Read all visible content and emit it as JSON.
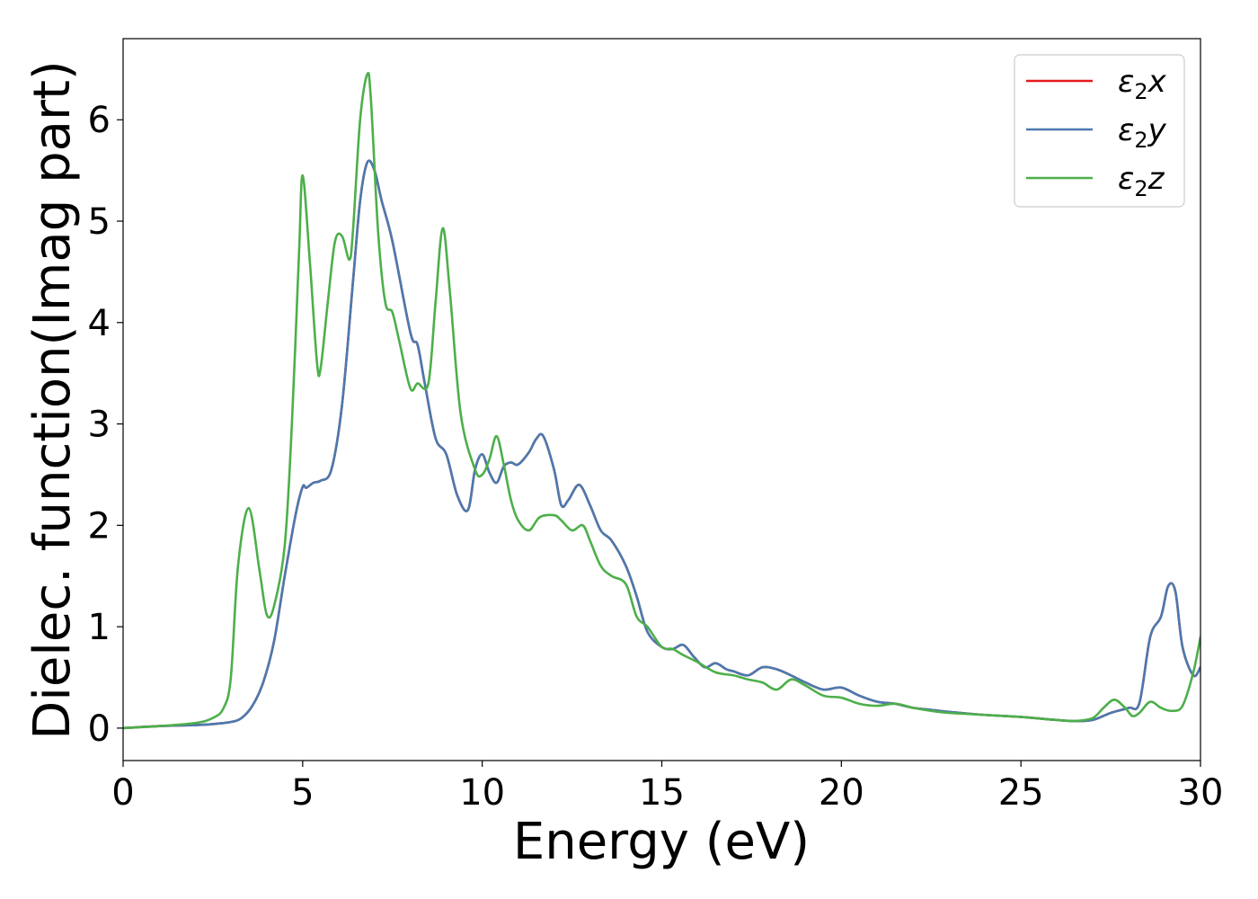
{
  "chart_data": {
    "type": "line",
    "xlabel": "Energy (eV)",
    "ylabel": "Dielec. function(Imag part)",
    "xlim": [
      0,
      30
    ],
    "ylim": [
      -0.32,
      6.8
    ],
    "xticks": [
      0,
      5,
      10,
      15,
      20,
      25,
      30
    ],
    "yticks": [
      0,
      1,
      2,
      3,
      4,
      5,
      6
    ],
    "grid": false,
    "legend_position": "top-right",
    "series": [
      {
        "name": "ε2x",
        "label_main": "ε",
        "label_sub": "2",
        "label_axis": "x",
        "color": "#e41a1c",
        "x": [
          0,
          1,
          2,
          2.5,
          3,
          3.3,
          3.6,
          3.9,
          4.2,
          4.5,
          4.8,
          5.0,
          5.1,
          5.3,
          5.5,
          5.8,
          6.1,
          6.4,
          6.6,
          6.8,
          7.0,
          7.2,
          7.5,
          8.0,
          8.2,
          8.4,
          8.7,
          9.0,
          9.3,
          9.6,
          9.8,
          10.0,
          10.2,
          10.4,
          10.6,
          10.8,
          11.0,
          11.3,
          11.5,
          11.7,
          12.0,
          12.2,
          12.4,
          12.7,
          13.0,
          13.3,
          13.6,
          14.0,
          14.3,
          14.6,
          15.0,
          15.3,
          15.6,
          15.9,
          16.2,
          16.5,
          16.8,
          17.0,
          17.4,
          17.8,
          18.2,
          18.6,
          19.0,
          19.5,
          20.0,
          20.5,
          21.0,
          21.5,
          22.0,
          22.5,
          23.0,
          24.0,
          25.0,
          26.0,
          26.5,
          27.0,
          27.5,
          28.0,
          28.3,
          28.6,
          28.9,
          29.1,
          29.3,
          29.5,
          29.8,
          30.0
        ],
        "y": [
          0.0,
          0.02,
          0.03,
          0.04,
          0.06,
          0.1,
          0.22,
          0.45,
          0.85,
          1.5,
          2.1,
          2.38,
          2.37,
          2.42,
          2.44,
          2.55,
          3.2,
          4.4,
          5.2,
          5.58,
          5.5,
          5.2,
          4.8,
          3.9,
          3.78,
          3.4,
          2.86,
          2.7,
          2.3,
          2.15,
          2.55,
          2.7,
          2.52,
          2.42,
          2.58,
          2.62,
          2.6,
          2.72,
          2.85,
          2.88,
          2.55,
          2.2,
          2.25,
          2.4,
          2.2,
          1.95,
          1.85,
          1.6,
          1.3,
          0.95,
          0.8,
          0.78,
          0.82,
          0.7,
          0.6,
          0.64,
          0.58,
          0.56,
          0.52,
          0.6,
          0.58,
          0.52,
          0.45,
          0.38,
          0.4,
          0.32,
          0.26,
          0.24,
          0.2,
          0.18,
          0.16,
          0.13,
          0.11,
          0.08,
          0.07,
          0.08,
          0.15,
          0.2,
          0.25,
          0.9,
          1.1,
          1.4,
          1.35,
          0.8,
          0.52,
          0.6
        ]
      },
      {
        "name": "ε2y",
        "label_main": "ε",
        "label_sub": "2",
        "label_axis": "y",
        "color": "#4a7aaf",
        "x": [
          0,
          1,
          2,
          2.5,
          3,
          3.3,
          3.6,
          3.9,
          4.2,
          4.5,
          4.8,
          5.0,
          5.1,
          5.3,
          5.5,
          5.8,
          6.1,
          6.4,
          6.6,
          6.8,
          7.0,
          7.2,
          7.5,
          8.0,
          8.2,
          8.4,
          8.7,
          9.0,
          9.3,
          9.6,
          9.8,
          10.0,
          10.2,
          10.4,
          10.6,
          10.8,
          11.0,
          11.3,
          11.5,
          11.7,
          12.0,
          12.2,
          12.4,
          12.7,
          13.0,
          13.3,
          13.6,
          14.0,
          14.3,
          14.6,
          15.0,
          15.3,
          15.6,
          15.9,
          16.2,
          16.5,
          16.8,
          17.0,
          17.4,
          17.8,
          18.2,
          18.6,
          19.0,
          19.5,
          20.0,
          20.5,
          21.0,
          21.5,
          22.0,
          22.5,
          23.0,
          24.0,
          25.0,
          26.0,
          26.5,
          27.0,
          27.5,
          28.0,
          28.3,
          28.6,
          28.9,
          29.1,
          29.3,
          29.5,
          29.8,
          30.0
        ],
        "y": [
          0.0,
          0.02,
          0.03,
          0.04,
          0.06,
          0.1,
          0.22,
          0.45,
          0.85,
          1.5,
          2.1,
          2.38,
          2.37,
          2.42,
          2.44,
          2.55,
          3.2,
          4.4,
          5.2,
          5.58,
          5.5,
          5.2,
          4.8,
          3.9,
          3.78,
          3.4,
          2.86,
          2.7,
          2.3,
          2.15,
          2.55,
          2.7,
          2.52,
          2.42,
          2.58,
          2.62,
          2.6,
          2.72,
          2.85,
          2.88,
          2.55,
          2.2,
          2.25,
          2.4,
          2.2,
          1.95,
          1.85,
          1.6,
          1.3,
          0.95,
          0.8,
          0.78,
          0.82,
          0.7,
          0.6,
          0.64,
          0.58,
          0.56,
          0.52,
          0.6,
          0.58,
          0.52,
          0.45,
          0.38,
          0.4,
          0.32,
          0.26,
          0.24,
          0.2,
          0.18,
          0.16,
          0.13,
          0.11,
          0.08,
          0.07,
          0.08,
          0.15,
          0.2,
          0.25,
          0.9,
          1.1,
          1.4,
          1.35,
          0.8,
          0.52,
          0.6
        ]
      },
      {
        "name": "ε2z",
        "label_main": "ε",
        "label_sub": "2",
        "label_axis": "z",
        "color": "#4daf4a",
        "x": [
          0,
          1,
          2,
          2.5,
          2.8,
          3.0,
          3.2,
          3.5,
          3.8,
          4.0,
          4.2,
          4.5,
          4.7,
          4.9,
          5.0,
          5.2,
          5.4,
          5.5,
          5.7,
          5.9,
          6.1,
          6.3,
          6.4,
          6.6,
          6.8,
          6.9,
          7.1,
          7.3,
          7.5,
          7.7,
          8.0,
          8.2,
          8.5,
          8.7,
          8.9,
          9.1,
          9.4,
          9.8,
          10.0,
          10.2,
          10.4,
          10.6,
          10.8,
          11.0,
          11.3,
          11.6,
          12.0,
          12.2,
          12.5,
          12.8,
          13.0,
          13.3,
          13.6,
          14.0,
          14.3,
          14.6,
          15.0,
          15.3,
          15.6,
          16.0,
          16.5,
          17.0,
          17.4,
          17.8,
          18.2,
          18.6,
          19.0,
          19.5,
          20.0,
          20.5,
          21.0,
          21.5,
          22.0,
          22.5,
          23.0,
          24.0,
          25.0,
          26.0,
          26.5,
          27.0,
          27.3,
          27.6,
          27.9,
          28.1,
          28.3,
          28.6,
          28.9,
          29.2,
          29.5,
          29.8,
          30.0
        ],
        "y": [
          0.0,
          0.02,
          0.05,
          0.1,
          0.2,
          0.5,
          1.6,
          2.17,
          1.55,
          1.12,
          1.2,
          1.8,
          3.0,
          4.7,
          5.45,
          4.6,
          3.6,
          3.55,
          4.2,
          4.8,
          4.85,
          4.62,
          4.9,
          6.0,
          6.45,
          6.2,
          4.9,
          4.2,
          4.1,
          3.8,
          3.35,
          3.4,
          3.4,
          4.2,
          4.93,
          4.3,
          3.1,
          2.55,
          2.5,
          2.65,
          2.88,
          2.6,
          2.25,
          2.05,
          1.95,
          2.08,
          2.1,
          2.05,
          1.95,
          2.0,
          1.85,
          1.6,
          1.5,
          1.42,
          1.1,
          1.0,
          0.8,
          0.78,
          0.72,
          0.65,
          0.55,
          0.52,
          0.48,
          0.45,
          0.38,
          0.48,
          0.42,
          0.32,
          0.3,
          0.24,
          0.22,
          0.24,
          0.2,
          0.17,
          0.15,
          0.13,
          0.11,
          0.08,
          0.07,
          0.1,
          0.2,
          0.28,
          0.2,
          0.12,
          0.15,
          0.26,
          0.2,
          0.17,
          0.22,
          0.55,
          0.9
        ]
      }
    ]
  }
}
